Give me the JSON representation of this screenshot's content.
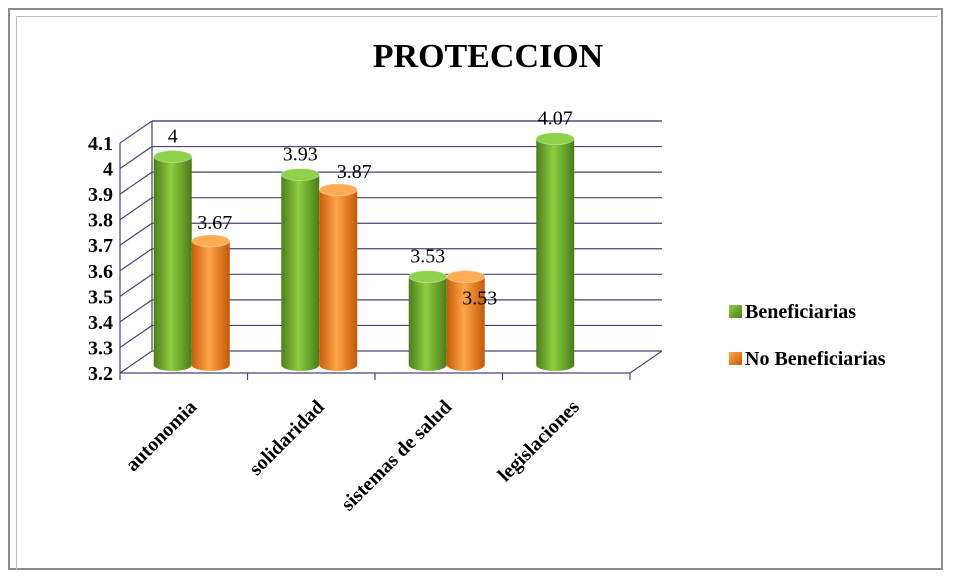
{
  "chart_data": {
    "type": "bar",
    "title": "PROTECCION",
    "categories": [
      "autonomia",
      "solidaridad",
      "sistemas de salud",
      "legislaciones"
    ],
    "series": [
      {
        "name": "Beneficiarias",
        "values": [
          4,
          3.93,
          3.53,
          4.07
        ],
        "labels": [
          "4",
          "3.93",
          "3.53",
          "4.07"
        ],
        "color": "#6aa12a"
      },
      {
        "name": "No Beneficiarias",
        "values": [
          3.67,
          3.87,
          3.53,
          null
        ],
        "labels": [
          "3.67",
          "3.87",
          "3.53",
          ""
        ],
        "color": "#f07e1a"
      }
    ],
    "ylim": [
      3.2,
      4.1
    ],
    "yticks": [
      "3.2",
      "3.3",
      "3.4",
      "3.5",
      "3.6",
      "3.7",
      "3.8",
      "3.9",
      "4",
      "4.1"
    ],
    "grid": true,
    "legend_position": "right"
  }
}
